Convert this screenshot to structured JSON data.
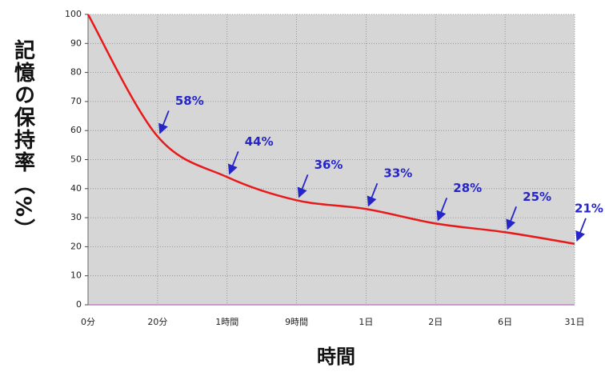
{
  "chart_data": {
    "type": "line",
    "y_label": "記憶の保持率（%）",
    "x_label": "時間",
    "categories": [
      "0分",
      "20分",
      "1時間",
      "9時間",
      "1日",
      "2日",
      "6日",
      "31日"
    ],
    "values": [
      100,
      58,
      44,
      36,
      33,
      28,
      25,
      21
    ],
    "value_labels": [
      null,
      "58%",
      "44%",
      "36%",
      "33%",
      "28%",
      "25%",
      "21%"
    ],
    "color": "#e8191a",
    "label_color": "#2626c8",
    "ylim": [
      0,
      100
    ],
    "yticks": [
      0,
      10,
      20,
      30,
      40,
      50,
      60,
      70,
      80,
      90,
      100
    ],
    "grid": true
  }
}
